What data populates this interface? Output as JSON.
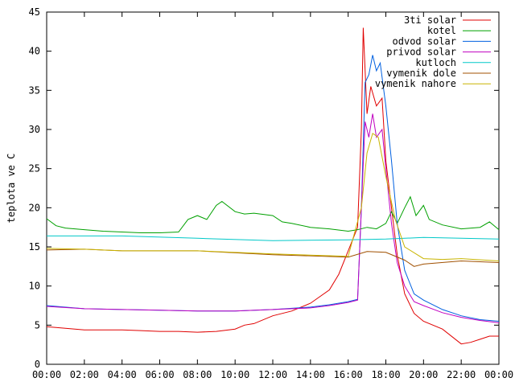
{
  "chart_data": {
    "type": "line",
    "ylabel": "teplota ve C",
    "legend": "upper right",
    "xlim": [
      0,
      24
    ],
    "ylim": [
      0,
      45
    ],
    "yticks": [
      0,
      5,
      10,
      15,
      20,
      25,
      30,
      35,
      40,
      45
    ],
    "xticks": [
      {
        "value": 0,
        "label": "00:00"
      },
      {
        "value": 2,
        "label": "02:00"
      },
      {
        "value": 4,
        "label": "04:00"
      },
      {
        "value": 6,
        "label": "06:00"
      },
      {
        "value": 8,
        "label": "08:00"
      },
      {
        "value": 10,
        "label": "10:00"
      },
      {
        "value": 12,
        "label": "12:00"
      },
      {
        "value": 14,
        "label": "14:00"
      },
      {
        "value": 16,
        "label": "16:00"
      },
      {
        "value": 18,
        "label": "18:00"
      },
      {
        "value": 20,
        "label": "20:00"
      },
      {
        "value": 22,
        "label": "22:00"
      },
      {
        "value": 24,
        "label": "00:00"
      }
    ],
    "series": [
      {
        "name": "3ti solar",
        "color": "#e00000",
        "x": [
          0,
          1,
          2,
          3,
          4,
          5,
          6,
          7,
          8,
          9,
          10,
          10.5,
          11,
          12,
          13,
          14,
          15,
          15.5,
          16,
          16.5,
          16.7,
          16.8,
          17,
          17.2,
          17.5,
          17.8,
          18,
          18.3,
          18.6,
          19,
          19.5,
          20,
          21,
          22,
          22.5,
          23,
          23.5,
          24
        ],
        "values": [
          4.8,
          4.6,
          4.4,
          4.4,
          4.4,
          4.3,
          4.2,
          4.2,
          4.1,
          4.2,
          4.5,
          5,
          5.2,
          6.2,
          6.8,
          7.8,
          9.5,
          11.5,
          14.5,
          17.5,
          30,
          43,
          32,
          35.5,
          33,
          34,
          26,
          20,
          14,
          9,
          6.5,
          5.5,
          4.5,
          2.6,
          2.8,
          3.2,
          3.6,
          3.6
        ]
      },
      {
        "name": "kotel",
        "color": "#00a000",
        "x": [
          0,
          0.5,
          1,
          2,
          3,
          4,
          5,
          6,
          7,
          7.5,
          8,
          8.5,
          9,
          9.3,
          10,
          10.5,
          11,
          12,
          12.5,
          13,
          14,
          15,
          16,
          16.5,
          17,
          17.5,
          18,
          18.3,
          18.6,
          19,
          19.3,
          19.6,
          20,
          20.3,
          21,
          22,
          23,
          23.5,
          24
        ],
        "values": [
          18.6,
          17.7,
          17.4,
          17.2,
          17,
          16.9,
          16.8,
          16.8,
          16.9,
          18.5,
          19,
          18.5,
          20.3,
          20.8,
          19.5,
          19.2,
          19.3,
          19,
          18.2,
          18,
          17.5,
          17.3,
          17,
          17.2,
          17.5,
          17.3,
          18,
          19.5,
          18,
          20,
          21.4,
          19,
          20.3,
          18.5,
          17.8,
          17.3,
          17.5,
          18.2,
          17.2
        ]
      },
      {
        "name": "odvod solar",
        "color": "#0060e0",
        "x": [
          0,
          2,
          4,
          6,
          8,
          10,
          12,
          14,
          15,
          16,
          16.5,
          16.7,
          16.9,
          17.1,
          17.3,
          17.5,
          17.7,
          18,
          18.3,
          18.6,
          19,
          19.5,
          20,
          21,
          22,
          23,
          24
        ],
        "values": [
          7.5,
          7.1,
          7,
          6.9,
          6.8,
          6.8,
          7,
          7.3,
          7.6,
          8,
          8.3,
          20,
          36,
          37,
          39.5,
          37.5,
          38.5,
          33,
          26,
          18,
          12,
          9,
          8.2,
          7,
          6.2,
          5.7,
          5.5
        ]
      },
      {
        "name": "privod solar",
        "color": "#c000c0",
        "x": [
          0,
          2,
          4,
          6,
          8,
          10,
          12,
          14,
          15,
          16,
          16.5,
          16.7,
          16.9,
          17.1,
          17.3,
          17.5,
          17.8,
          18,
          18.3,
          18.6,
          19,
          19.5,
          20,
          21,
          22,
          23,
          24
        ],
        "values": [
          7.4,
          7.1,
          7,
          6.9,
          6.8,
          6.8,
          7,
          7.2,
          7.5,
          7.9,
          8.2,
          20,
          31,
          29,
          32,
          29,
          30,
          25,
          18,
          13,
          10,
          8,
          7.5,
          6.6,
          6,
          5.6,
          5.3
        ]
      },
      {
        "name": "kutloch",
        "color": "#00c8c8",
        "x": [
          0,
          4,
          8,
          12,
          16,
          18,
          20,
          22,
          24
        ],
        "values": [
          16.4,
          16.4,
          16.1,
          15.8,
          15.9,
          16,
          16.2,
          16.1,
          16
        ]
      },
      {
        "name": "vymenik dole",
        "color": "#a05000",
        "x": [
          0,
          2,
          4,
          8,
          12,
          16,
          17,
          18,
          19,
          19.5,
          20,
          22,
          24
        ],
        "values": [
          14.6,
          14.7,
          14.5,
          14.5,
          14,
          13.7,
          14.4,
          14.3,
          13.3,
          12.5,
          12.8,
          13.2,
          13
        ]
      },
      {
        "name": "vymenik nahore",
        "color": "#c8b400",
        "x": [
          0,
          2,
          4,
          8,
          12,
          16,
          16.7,
          17,
          17.3,
          17.6,
          18,
          18.5,
          19,
          20,
          21,
          22,
          24
        ],
        "values": [
          14.8,
          14.7,
          14.5,
          14.5,
          14.1,
          13.8,
          20,
          27,
          29.5,
          29,
          24,
          18.5,
          15,
          13.5,
          13.4,
          13.5,
          13.2
        ]
      }
    ]
  }
}
